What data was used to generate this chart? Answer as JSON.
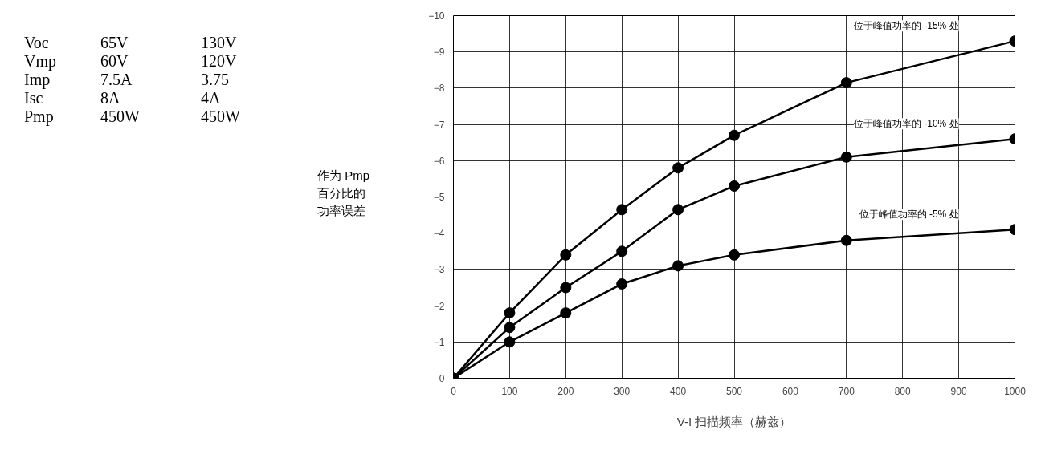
{
  "chart_data": {
    "type": "line",
    "xlabel": "V-I 扫描频率（赫兹）",
    "ylabel": "作为 Pmp百分比的功率误差",
    "x": [
      0,
      100,
      200,
      300,
      400,
      500,
      700,
      1000
    ],
    "series": [
      {
        "name": "位于峰值功率的 -15% 处",
        "color": "#000000",
        "values": [
          0,
          -1.8,
          -3.4,
          -4.65,
          -5.8,
          -6.7,
          -8.15,
          -9.3
        ]
      },
      {
        "name": "位于峰值功率的 -10% 处",
        "color": "#000000",
        "values": [
          0,
          -1.4,
          -2.5,
          -3.5,
          -4.65,
          -5.3,
          -6.1,
          -6.6
        ]
      },
      {
        "name": "位于峰值功率的 -5% 处",
        "color": "#000000",
        "values": [
          0,
          -1.0,
          -1.8,
          -2.6,
          -3.1,
          -3.4,
          -3.8,
          -4.1
        ]
      }
    ],
    "xlim": [
      0,
      1000
    ],
    "xticks": [
      0,
      100,
      200,
      300,
      400,
      500,
      600,
      700,
      800,
      900,
      1000
    ],
    "ylim": [
      0,
      -10
    ],
    "yticks": [
      0,
      -1,
      -2,
      -3,
      -4,
      -5,
      -6,
      -7,
      -8,
      -9,
      -10
    ],
    "grid": true,
    "marker": "circle",
    "line_style": "solid",
    "annotations": [
      "Voc",
      "65V",
      "130V",
      "Vmp",
      "60V",
      "120V",
      "Imp",
      "7.5A",
      "3.75",
      "Isc",
      "8A",
      "4A",
      "Pmp",
      "450W",
      "450W"
    ]
  }
}
